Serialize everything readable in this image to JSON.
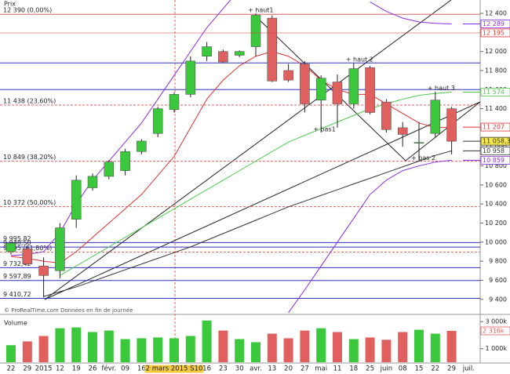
{
  "chart_data": {
    "type": "candlestick",
    "title": "Prix",
    "volume_title": "Volume",
    "credit": "© ProRealTime.com  Données en fin de journée",
    "categories": [
      "22",
      "29",
      "2015",
      "12",
      "19",
      "26",
      "févr.",
      "09",
      "16",
      null,
      "2 mars 2015 S10",
      null,
      "16",
      "23",
      "30",
      "avr.",
      "13",
      "20",
      "27",
      "mai",
      "11",
      "18",
      "25",
      "juin",
      "08",
      "15",
      "22",
      "29"
    ],
    "axis_end_label": "juil.",
    "open": [
      9900,
      9930,
      9750,
      9700,
      10240,
      10570,
      10690,
      10750,
      10950,
      11140,
      11390,
      11550,
      11950,
      12000,
      11960,
      12050,
      12350,
      11800,
      11870,
      11490,
      11680,
      11450,
      11830,
      11470,
      11200,
      11040,
      11140,
      11400
    ],
    "high": [
      10000,
      9960,
      9840,
      10200,
      10700,
      10720,
      10860,
      10980,
      11080,
      11420,
      11570,
      11950,
      12100,
      12020,
      12010,
      12400,
      12380,
      11870,
      11900,
      11750,
      11760,
      11880,
      11850,
      11500,
      11260,
      11260,
      11580,
      11420
    ],
    "low": [
      9870,
      9780,
      9420,
      9620,
      10150,
      10540,
      10660,
      10700,
      10920,
      11100,
      11360,
      11520,
      11900,
      11880,
      11940,
      11950,
      11680,
      11680,
      11360,
      11150,
      11200,
      11400,
      11340,
      11150,
      11000,
      10850,
      11100,
      10920
    ],
    "close": [
      9990,
      9770,
      9650,
      10150,
      10650,
      10690,
      10840,
      10950,
      11060,
      11400,
      11550,
      11900,
      12050,
      11890,
      12000,
      12380,
      11690,
      11700,
      11450,
      11720,
      11450,
      11820,
      11360,
      11180,
      11130,
      11045,
      11490,
      11058.39
    ],
    "up_color": "#3cc83c",
    "down_color": "#e06060",
    "volume": [
      1260,
      1540,
      1940,
      2510,
      2570,
      2230,
      2340,
      1710,
      1770,
      1830,
      1770,
      1940,
      3080,
      2340,
      1710,
      1480,
      2110,
      1770,
      2340,
      2510,
      2230,
      1710,
      1830,
      1660,
      2230,
      2400,
      2110,
      2316
    ],
    "ylim": [
      9250,
      12540
    ],
    "yticks": [
      {
        "value": 9400,
        "label": "9 400"
      },
      {
        "value": 9600,
        "label": "9 600"
      },
      {
        "value": 9800,
        "label": "9 800"
      },
      {
        "value": 10000,
        "label": "10 000"
      },
      {
        "value": 10200,
        "label": "10 200"
      },
      {
        "value": 10400,
        "label": "10 400"
      },
      {
        "value": 10600,
        "label": "10 600"
      },
      {
        "value": 10800,
        "label": "10 800"
      },
      {
        "value": 11000,
        "label": "11 000"
      },
      {
        "value": 11200,
        "label": "11 200"
      },
      {
        "value": 11400,
        "label": "11 400"
      },
      {
        "value": 11600,
        "label": "11 600"
      },
      {
        "value": 11800,
        "label": "11 800"
      },
      {
        "value": 12000,
        "label": "12 000"
      },
      {
        "value": 12200,
        "label": "12 200"
      },
      {
        "value": 12400,
        "label": "12 400"
      }
    ],
    "volume_ylim": [
      0,
      3300
    ],
    "volume_yticks": [
      {
        "value": 1000,
        "label": "1 000k"
      },
      {
        "value": 3000,
        "label": "3 000k"
      }
    ],
    "series": [
      {
        "name": "MM rouge",
        "color": "#e03030",
        "values": [
          9850,
          9830,
          9800,
          9780,
          9900,
          10050,
          10200,
          10350,
          10500,
          10700,
          10900,
          11200,
          11500,
          11700,
          11850,
          11950,
          12000,
          11950,
          11850,
          11700,
          11600,
          11550,
          11550,
          11450,
          11350,
          11250,
          11200,
          11207
        ]
      },
      {
        "name": "MM verte",
        "color": "#50c850",
        "values": [
          null,
          null,
          null,
          9650,
          9750,
          9850,
          9950,
          10050,
          10150,
          10250,
          10350,
          10450,
          10550,
          10650,
          10750,
          10850,
          10950,
          11050,
          11120,
          11190,
          11260,
          11330,
          11400,
          11450,
          11500,
          11540,
          11560,
          11574
        ]
      },
      {
        "name": "MM noire",
        "color": "#333333",
        "values": [
          null,
          null,
          9430,
          9480,
          9530,
          9590,
          9650,
          9710,
          9770,
          9830,
          9890,
          9950,
          10020,
          10090,
          10160,
          10230,
          10300,
          10370,
          10430,
          10490,
          10550,
          10610,
          10670,
          10730,
          10790,
          10850,
          10910,
          10958
        ]
      },
      {
        "name": "Bollinger haute",
        "color": "#8a2be2",
        "values": [
          9860,
          9870,
          9900,
          10100,
          10400,
          10650,
          10850,
          11050,
          11250,
          11500,
          11750,
          12000,
          12250,
          12450,
          12650,
          null,
          null,
          null,
          null,
          null,
          null,
          null,
          12520,
          12420,
          12350,
          12310,
          12295,
          12289
        ]
      },
      {
        "name": "Bollinger basse",
        "color": "#8a2be2",
        "values": [
          null,
          null,
          null,
          null,
          null,
          null,
          null,
          null,
          null,
          null,
          null,
          null,
          null,
          null,
          null,
          null,
          null,
          9260,
          9500,
          9750,
          10000,
          10250,
          10500,
          10650,
          10750,
          10800,
          10840,
          10859
        ]
      }
    ],
    "fib_levels": [
      {
        "value": 12390,
        "label": "12 390 (0,00%)"
      },
      {
        "value": 11438,
        "label": "11 438 (23,60%)"
      },
      {
        "value": 10849,
        "label": "10 849 (38,20%)"
      },
      {
        "value": 10372,
        "label": "10 372 (50,00%)"
      },
      {
        "value": 9895,
        "label": "9 895 (61,80%)"
      }
    ],
    "levels": [
      {
        "value": 9995.82,
        "label": "9 995,82"
      },
      {
        "value": 9948.5,
        "label": "9 948,50"
      },
      {
        "value": 9732.42,
        "label": "9 732,42"
      },
      {
        "value": 9597.89,
        "label": "9 597,89"
      },
      {
        "value": 9410.72,
        "label": "9 410,72"
      }
    ],
    "extra_levels": [
      11880,
      11600
    ],
    "price_labels": [
      {
        "value": 12289,
        "label": "12 289",
        "color": "#8a2be2"
      },
      {
        "value": 12195,
        "label": "12 195",
        "color": "#e03030"
      },
      {
        "value": 11574,
        "label": "11 574",
        "color": "#50c850"
      },
      {
        "value": 11207,
        "label": "11 207",
        "color": "#e03030"
      },
      {
        "value": 11058.39,
        "label": "11 058,39",
        "color": "#333333"
      },
      {
        "value": 10958,
        "label": "10 958",
        "color": "#333333"
      },
      {
        "value": 10859,
        "label": "10 859",
        "color": "#8a2be2"
      }
    ],
    "volume_label": {
      "value": 2316,
      "label": "2 316k"
    },
    "annotations": [
      {
        "text": "+ haut1",
        "candle": 15,
        "price": 12400
      },
      {
        "text": "+ haut 2",
        "candle": 21,
        "price": 11880
      },
      {
        "text": "+ haut 3",
        "candle": 26,
        "price": 11580
      },
      {
        "text": "+ bas1",
        "candle": 19,
        "price": 11150
      },
      {
        "text": "+ bas 2",
        "candle": 25,
        "price": 10850
      }
    ]
  }
}
